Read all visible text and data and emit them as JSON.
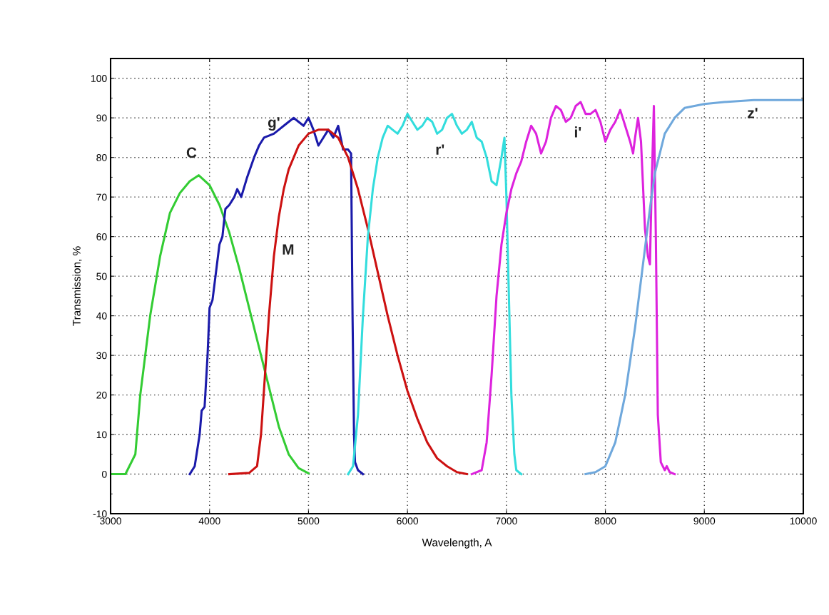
{
  "chart_data": {
    "type": "line",
    "xlabel": "Wavelength, A",
    "ylabel": "Transmission, %",
    "xlim": [
      3000,
      10000
    ],
    "xticks": [
      3000,
      4000,
      5000,
      6000,
      7000,
      8000,
      9000,
      10000
    ],
    "ylim": [
      -10,
      105
    ],
    "yticks": [
      -10,
      0,
      10,
      20,
      30,
      40,
      50,
      60,
      70,
      80,
      90,
      100
    ],
    "grid": true,
    "legend": false,
    "marker": "none",
    "line_style": "solid",
    "series": [
      {
        "name": "C",
        "color": "#33cc33",
        "x": [
          3000,
          3150,
          3250,
          3300,
          3400,
          3500,
          3600,
          3700,
          3800,
          3890,
          4000,
          4100,
          4200,
          4300,
          4400,
          4500,
          4600,
          4700,
          4800,
          4900,
          5000
        ],
        "values": [
          0,
          0,
          5,
          20,
          40,
          55,
          66,
          71,
          74,
          75.5,
          73,
          68,
          61,
          52,
          42,
          32,
          22,
          12,
          5,
          1.5,
          0.2
        ]
      },
      {
        "name": "g'",
        "color": "#1a1aaa",
        "x": [
          3800,
          3850,
          3900,
          3920,
          3950,
          3980,
          4000,
          4030,
          4060,
          4100,
          4130,
          4160,
          4200,
          4250,
          4280,
          4320,
          4380,
          4450,
          4500,
          4550,
          4650,
          4700,
          4750,
          4850,
          4900,
          4950,
          5000,
          5050,
          5100,
          5150,
          5200,
          5250,
          5300,
          5350,
          5400,
          5430,
          5445,
          5460,
          5470,
          5500,
          5550
        ],
        "values": [
          0,
          2,
          10,
          16,
          17,
          30,
          42,
          44,
          50,
          58,
          60,
          67,
          68,
          70,
          72,
          70,
          75,
          80,
          83,
          85,
          86,
          87,
          88,
          90,
          89,
          88,
          90,
          87,
          83,
          85,
          87,
          85,
          88,
          82,
          82,
          81,
          40,
          10,
          3,
          1,
          0
        ]
      },
      {
        "name": "M",
        "color": "#cc1111",
        "x": [
          4200,
          4400,
          4480,
          4520,
          4560,
          4600,
          4650,
          4700,
          4750,
          4800,
          4900,
          5000,
          5100,
          5200,
          5300,
          5400,
          5500,
          5600,
          5700,
          5800,
          5900,
          6000,
          6100,
          6200,
          6300,
          6400,
          6500,
          6600
        ],
        "values": [
          0,
          0.3,
          2,
          10,
          25,
          40,
          55,
          65,
          72,
          77,
          83,
          86,
          87,
          87,
          85,
          80,
          72,
          62,
          51,
          40,
          30,
          21,
          14,
          8,
          4,
          2,
          0.5,
          0
        ]
      },
      {
        "name": "r'",
        "color": "#33dddd",
        "x": [
          5400,
          5450,
          5500,
          5550,
          5600,
          5650,
          5700,
          5750,
          5800,
          5850,
          5900,
          5950,
          6000,
          6050,
          6100,
          6150,
          6200,
          6250,
          6300,
          6350,
          6400,
          6450,
          6500,
          6550,
          6600,
          6650,
          6700,
          6750,
          6800,
          6850,
          6900,
          6950,
          6980,
          7000,
          7020,
          7050,
          7080,
          7100,
          7150
        ],
        "values": [
          0,
          2,
          15,
          40,
          60,
          72,
          80,
          85,
          88,
          87,
          86,
          88,
          91,
          89,
          87,
          88,
          90,
          89,
          86,
          87,
          90,
          91,
          88,
          86,
          87,
          89,
          85,
          84,
          80,
          74,
          73,
          80,
          85,
          70,
          50,
          20,
          5,
          1,
          0
        ]
      },
      {
        "name": "i'",
        "color": "#dd22dd",
        "x": [
          6650,
          6750,
          6800,
          6850,
          6900,
          6950,
          7000,
          7050,
          7100,
          7150,
          7200,
          7250,
          7300,
          7350,
          7400,
          7450,
          7500,
          7550,
          7600,
          7650,
          7700,
          7750,
          7800,
          7850,
          7900,
          7950,
          8000,
          8050,
          8100,
          8150,
          8200,
          8250,
          8280,
          8300,
          8330,
          8360,
          8400,
          8430,
          8450,
          8470,
          8490,
          8510,
          8530,
          8560,
          8600,
          8620,
          8650,
          8700
        ],
        "values": [
          0,
          1,
          8,
          25,
          45,
          58,
          66,
          72,
          76,
          79,
          84,
          88,
          86,
          81,
          84,
          90,
          93,
          92,
          89,
          90,
          93,
          94,
          91,
          91,
          92,
          89,
          84,
          87,
          89,
          92,
          88,
          84,
          81,
          85,
          90,
          84,
          62,
          55,
          53,
          75,
          93,
          60,
          15,
          3,
          1,
          2,
          0.5,
          0
        ]
      },
      {
        "name": "z'",
        "color": "#6fa8dc",
        "x": [
          7800,
          7900,
          8000,
          8100,
          8200,
          8300,
          8400,
          8450,
          8500,
          8550,
          8600,
          8700,
          8800,
          9000,
          9200,
          9500,
          9800,
          10000
        ],
        "values": [
          0,
          0.5,
          2,
          8,
          20,
          37,
          57,
          67,
          76,
          81,
          86,
          90,
          92.5,
          93.5,
          94,
          94.5,
          94.5,
          94.5
        ]
      }
    ]
  }
}
